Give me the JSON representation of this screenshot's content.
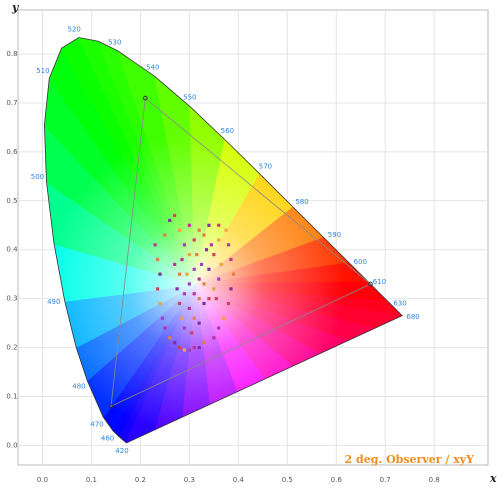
{
  "chart_data": {
    "type": "chromaticity",
    "xlabel": "x",
    "ylabel": "y",
    "annotation": "2 deg. Observer / xyY",
    "xlim": [
      -0.05,
      0.91
    ],
    "ylim": [
      -0.04,
      0.89
    ],
    "grid": true,
    "xticks": [
      {
        "value": 0,
        "label": "0.0"
      },
      {
        "value": 0.1,
        "label": "0.1"
      },
      {
        "value": 0.2,
        "label": "0.2"
      },
      {
        "value": 0.3,
        "label": "0.3"
      },
      {
        "value": 0.4,
        "label": "0.4"
      },
      {
        "value": 0.5,
        "label": "0.5"
      },
      {
        "value": 0.6,
        "label": "0.6"
      },
      {
        "value": 0.7,
        "label": "0.7"
      },
      {
        "value": 0.8,
        "label": "0.8"
      }
    ],
    "yticks": [
      {
        "value": 0,
        "label": "0.0"
      },
      {
        "value": 0.1,
        "label": "0.1"
      },
      {
        "value": 0.2,
        "label": "0.2"
      },
      {
        "value": 0.3,
        "label": "0.3"
      },
      {
        "value": 0.4,
        "label": "0.4"
      },
      {
        "value": 0.5,
        "label": "0.5"
      },
      {
        "value": 0.6,
        "label": "0.6"
      },
      {
        "value": 0.7,
        "label": "0.7"
      },
      {
        "value": 0.8,
        "label": "0.8"
      }
    ],
    "white_point": {
      "x": 0.3127,
      "y": 0.329
    },
    "locus": {
      "labels": [
        "420",
        null,
        "460",
        "470",
        "480",
        null,
        "490",
        null,
        "500",
        null,
        "510",
        null,
        "520",
        null,
        "530",
        "540",
        "550",
        "560",
        "570",
        "580",
        "590",
        "600",
        "610",
        "630",
        "680"
      ],
      "x": [
        0.1714,
        0.1566,
        0.144,
        0.1241,
        0.0913,
        0.0687,
        0.0454,
        0.0235,
        0.0082,
        0.0039,
        0.0139,
        0.0389,
        0.0743,
        0.1142,
        0.1547,
        0.2296,
        0.3016,
        0.3731,
        0.4441,
        0.5125,
        0.5752,
        0.627,
        0.6658,
        0.7079,
        0.7347
      ],
      "y": [
        0.0051,
        0.0177,
        0.0297,
        0.0578,
        0.1327,
        0.2007,
        0.295,
        0.4127,
        0.5384,
        0.6548,
        0.7502,
        0.812,
        0.8338,
        0.8262,
        0.8059,
        0.7543,
        0.6923,
        0.6245,
        0.5547,
        0.4866,
        0.4242,
        0.3725,
        0.334,
        0.292,
        0.2653
      ]
    },
    "gamut": {
      "x": [
        0.67,
        0.21,
        0.14
      ],
      "y": [
        0.33,
        0.71,
        0.08
      ],
      "color": "#888888"
    },
    "points": {
      "colors": [
        "#c0309a",
        "#e08040",
        "#8030a0",
        "#d04060",
        "#f0a040",
        "#a040c0"
      ],
      "x": [
        0.23,
        0.235,
        0.24,
        0.235,
        0.24,
        0.245,
        0.25,
        0.26,
        0.27,
        0.28,
        0.29,
        0.3,
        0.31,
        0.25,
        0.26,
        0.27,
        0.28,
        0.29,
        0.285,
        0.28,
        0.275,
        0.28,
        0.285,
        0.29,
        0.3,
        0.32,
        0.34,
        0.36,
        0.375,
        0.38,
        0.385,
        0.39,
        0.385,
        0.38,
        0.37,
        0.36,
        0.35,
        0.33,
        0.32,
        0.31,
        0.3,
        0.31,
        0.32,
        0.33,
        0.34,
        0.35,
        0.36,
        0.3,
        0.31,
        0.32,
        0.33,
        0.34,
        0.35,
        0.36,
        0.3,
        0.31,
        0.32,
        0.305,
        0.295,
        0.325,
        0.345,
        0.315,
        0.335,
        0.355,
        0.365,
        0.29,
        0.27,
        0.33
      ],
      "y": [
        0.41,
        0.38,
        0.35,
        0.32,
        0.29,
        0.26,
        0.24,
        0.22,
        0.21,
        0.2,
        0.195,
        0.195,
        0.2,
        0.43,
        0.46,
        0.47,
        0.44,
        0.41,
        0.38,
        0.35,
        0.32,
        0.29,
        0.26,
        0.24,
        0.45,
        0.44,
        0.45,
        0.45,
        0.44,
        0.41,
        0.38,
        0.35,
        0.32,
        0.29,
        0.26,
        0.24,
        0.22,
        0.21,
        0.2,
        0.42,
        0.39,
        0.36,
        0.34,
        0.33,
        0.36,
        0.39,
        0.42,
        0.33,
        0.31,
        0.3,
        0.29,
        0.3,
        0.32,
        0.34,
        0.28,
        0.26,
        0.25,
        0.23,
        0.35,
        0.37,
        0.41,
        0.39,
        0.4,
        0.3,
        0.37,
        0.31,
        0.37,
        0.43
      ]
    }
  }
}
